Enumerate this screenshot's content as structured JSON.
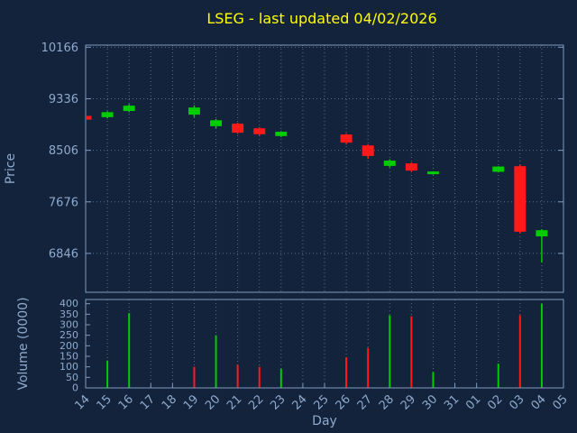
{
  "title": "LSEG - last updated 04/02/2026",
  "colors": {
    "background": "#13233b",
    "title": "#ffff00",
    "axis_text": "#8faacd",
    "border": "#7f9bbf",
    "grid": "#5a7080",
    "up": "#00cc00",
    "down": "#ff1a1a"
  },
  "chart_data": {
    "type": "candlestick",
    "title": "LSEG - last updated 04/02/2026",
    "xlabel": "Day",
    "ylabel": "Price",
    "ylabel2": "Volume (0000)",
    "legend": "none",
    "grid": "dotted",
    "x_labels": [
      "14",
      "15",
      "16",
      "17",
      "18",
      "19",
      "20",
      "21",
      "22",
      "23",
      "24",
      "25",
      "26",
      "27",
      "28",
      "29",
      "30",
      "31",
      "01",
      "02",
      "03",
      "04",
      "05"
    ],
    "price_axis": {
      "label": "Price",
      "ticks": [
        6846,
        7676,
        8506,
        9336,
        10166
      ],
      "range": [
        6220,
        10200
      ]
    },
    "volume_axis": {
      "label": "Volume (0000)",
      "ticks": [
        0,
        50,
        100,
        150,
        200,
        250,
        300,
        350,
        400
      ],
      "range": [
        0,
        420
      ]
    },
    "candles": [
      {
        "day": "14",
        "open": 9060,
        "high": 9070,
        "low": 8990,
        "close": 9000,
        "volume": 0,
        "volume_dir": "down"
      },
      {
        "day": "15",
        "open": 9040,
        "high": 9135,
        "low": 9020,
        "close": 9120,
        "volume": 130,
        "volume_dir": "up"
      },
      {
        "day": "16",
        "open": 9140,
        "high": 9250,
        "low": 9120,
        "close": 9225,
        "volume": 355,
        "volume_dir": "up"
      },
      {
        "day": "19",
        "open": 9080,
        "high": 9230,
        "low": 9040,
        "close": 9195,
        "volume": 100,
        "volume_dir": "down"
      },
      {
        "day": "20",
        "open": 8895,
        "high": 9010,
        "low": 8860,
        "close": 8990,
        "volume": 250,
        "volume_dir": "up"
      },
      {
        "day": "21",
        "open": 8935,
        "high": 8950,
        "low": 8770,
        "close": 8790,
        "volume": 110,
        "volume_dir": "down"
      },
      {
        "day": "22",
        "open": 8860,
        "high": 8880,
        "low": 8740,
        "close": 8765,
        "volume": 100,
        "volume_dir": "down"
      },
      {
        "day": "23",
        "open": 8735,
        "high": 8815,
        "low": 8720,
        "close": 8805,
        "volume": 90,
        "volume_dir": "up"
      },
      {
        "day": "26",
        "open": 8760,
        "high": 8775,
        "low": 8600,
        "close": 8630,
        "volume": 145,
        "volume_dir": "down"
      },
      {
        "day": "27",
        "open": 8585,
        "high": 8600,
        "low": 8370,
        "close": 8415,
        "volume": 190,
        "volume_dir": "down"
      },
      {
        "day": "28",
        "open": 8255,
        "high": 8360,
        "low": 8230,
        "close": 8340,
        "volume": 345,
        "volume_dir": "up"
      },
      {
        "day": "29",
        "open": 8295,
        "high": 8310,
        "low": 8160,
        "close": 8180,
        "volume": 340,
        "volume_dir": "down"
      },
      {
        "day": "30",
        "open": 8125,
        "high": 8170,
        "low": 8115,
        "close": 8165,
        "volume": 75,
        "volume_dir": "up"
      },
      {
        "day": "02",
        "open": 8160,
        "high": 8250,
        "low": 8150,
        "close": 8245,
        "volume": 115,
        "volume_dir": "up"
      },
      {
        "day": "03",
        "open": 8250,
        "high": 8270,
        "low": 7170,
        "close": 7195,
        "volume": 345,
        "volume_dir": "down"
      },
      {
        "day": "04",
        "open": 7120,
        "high": 7235,
        "low": 6700,
        "close": 7220,
        "volume": 400,
        "volume_dir": "up"
      }
    ]
  }
}
